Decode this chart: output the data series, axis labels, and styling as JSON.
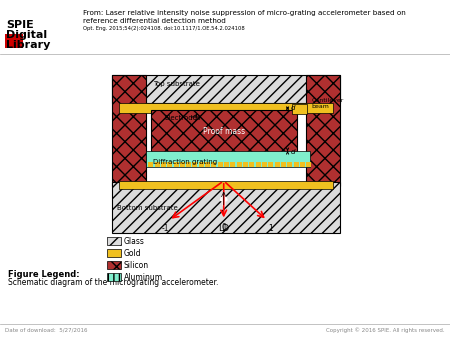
{
  "title_line1": "From: Laser relative intensity noise suppression of micro-grating accelerometer based on",
  "title_line2": "reference differential detection method",
  "title_line3": "Opt. Eng. 2015;54(2):024108. doi:10.1117/1.OE.54.2.024108",
  "figure_legend_title": "Figure Legend:",
  "figure_legend_text": "Schematic diagram of the micrograting accelerometer.",
  "footer_left": "Date of download:  5/27/2016",
  "footer_right": "Copyright © 2016 SPIE. All rights reserved.",
  "bg_color": "#ffffff",
  "glass_color": "#dcdcdc",
  "gold_color": "#f0c020",
  "silicon_color": "#b03030",
  "aluminum_color": "#80eecc"
}
